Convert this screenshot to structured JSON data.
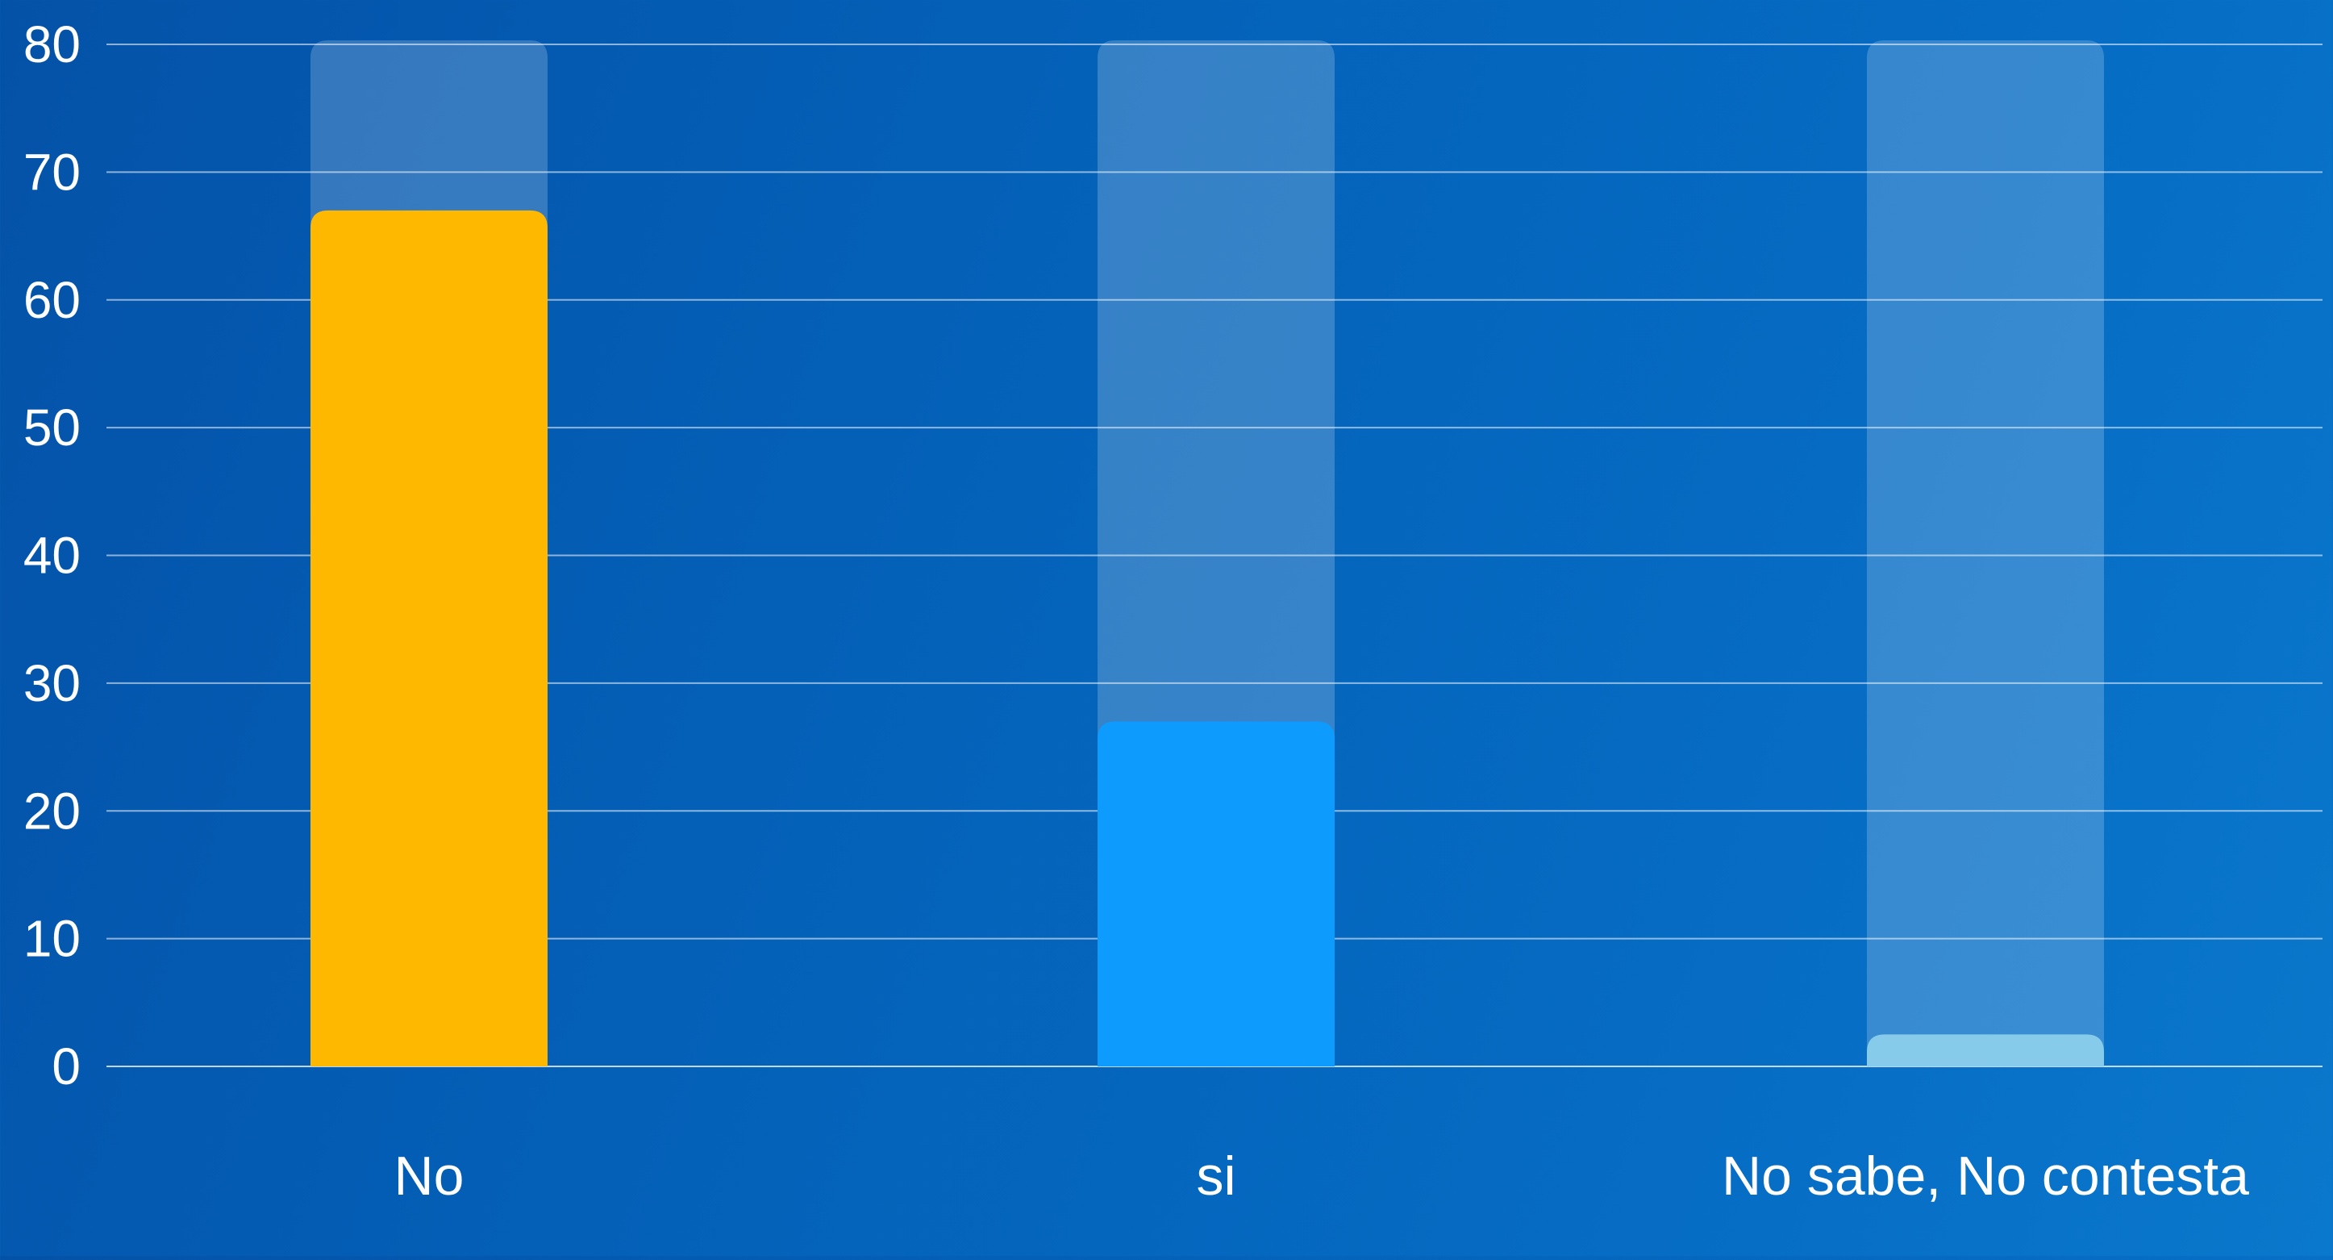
{
  "chart_data": {
    "type": "bar",
    "categories": [
      "No",
      "si",
      "No sabe, No contesta"
    ],
    "values": [
      67,
      27,
      2.5
    ],
    "ylim": [
      0,
      80
    ],
    "yticks": [
      0,
      10,
      20,
      30,
      40,
      50,
      60,
      70,
      80
    ],
    "title": "",
    "xlabel": "",
    "ylabel": "",
    "grid": true,
    "legend": "none",
    "colors": {
      "bars": [
        "#ffb800",
        "#0d9bfd",
        "#86cbea"
      ],
      "track": "#ffffff",
      "gridline": "#ffffff",
      "text": "#ffffff"
    }
  }
}
